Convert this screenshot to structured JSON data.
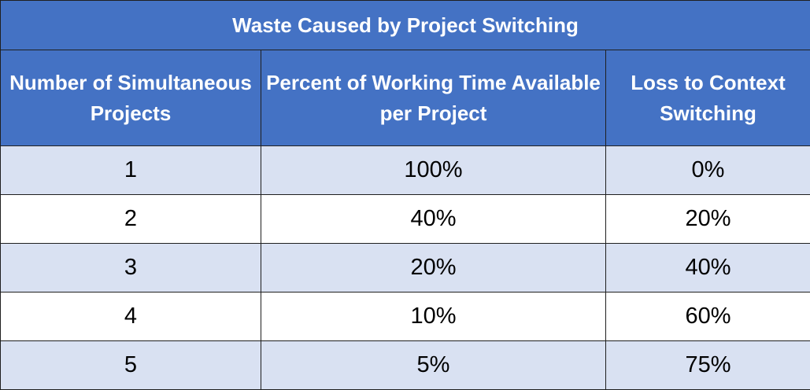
{
  "table": {
    "title": "Waste Caused by Project Switching",
    "headers": [
      "Number of Simultaneous Projects",
      "Percent of Working Time Available per Project",
      "Loss to Context Switching"
    ],
    "rows": [
      [
        "1",
        "100%",
        "0%"
      ],
      [
        "2",
        "40%",
        "20%"
      ],
      [
        "3",
        "20%",
        "40%"
      ],
      [
        "4",
        "10%",
        "60%"
      ],
      [
        "5",
        "5%",
        "75%"
      ]
    ]
  },
  "colors": {
    "header_background": "#4472c4",
    "header_text": "#ffffff",
    "band_background": "#d9e1f2",
    "plain_background": "#ffffff",
    "border": "#1f1f1f"
  }
}
